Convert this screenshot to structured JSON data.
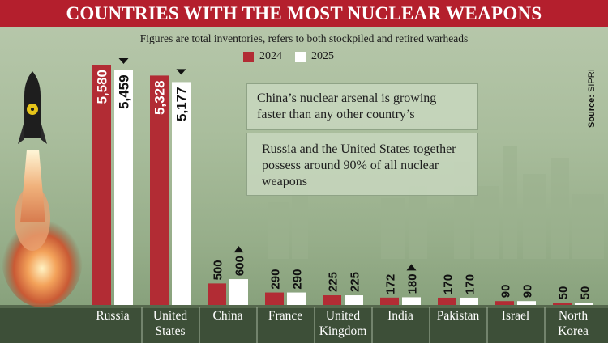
{
  "chart_data": {
    "type": "bar",
    "title": "COUNTRIES WITH THE MOST NUCLEAR WEAPONS",
    "subtitle": "Figures are total inventories, refers to both stockpiled and retired warheads",
    "categories": [
      "Russia",
      "United States",
      "China",
      "France",
      "United Kingdom",
      "India",
      "Pakistan",
      "Israel",
      "North Korea"
    ],
    "category_lines": [
      [
        "Russia"
      ],
      [
        "United",
        "States"
      ],
      [
        "China"
      ],
      [
        "France"
      ],
      [
        "United",
        "Kingdom"
      ],
      [
        "India"
      ],
      [
        "Pakistan"
      ],
      [
        "Israel"
      ],
      [
        "North",
        "Korea"
      ]
    ],
    "series": [
      {
        "name": "2024",
        "color": "#b22c34",
        "values": [
          5580,
          5328,
          500,
          290,
          225,
          172,
          170,
          90,
          50
        ],
        "labels": [
          "5,580",
          "5,328",
          "500",
          "290",
          "225",
          "172",
          "170",
          "90",
          "50"
        ]
      },
      {
        "name": "2025",
        "color": "#ffffff",
        "values": [
          5459,
          5177,
          600,
          290,
          225,
          180,
          170,
          90,
          50
        ],
        "labels": [
          "5,459",
          "5,177",
          "600",
          "290",
          "225",
          "180",
          "170",
          "90",
          "50"
        ]
      }
    ],
    "trend_markers": [
      {
        "category": "Russia",
        "direction": "down"
      },
      {
        "category": "United States",
        "direction": "down"
      },
      {
        "category": "China",
        "direction": "up"
      },
      {
        "category": "India",
        "direction": "up"
      }
    ],
    "annotations": [
      "China’s nuclear arsenal is growing faster than any other country’s",
      "Russia and the United States together possess around 90% of all nuclear weapons"
    ],
    "source_label": "Source:",
    "source_value": "SIPRI",
    "ylim": [
      0,
      6000
    ]
  }
}
